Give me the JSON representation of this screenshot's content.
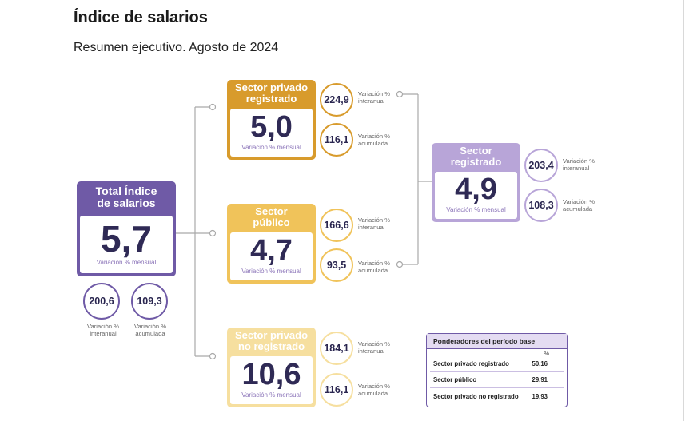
{
  "header": {
    "title": "Índice de salarios",
    "subtitle": "Resumen ejecutivo. Agosto de 2024"
  },
  "total": {
    "title_line1": "Total Índice",
    "title_line2": "de salarios",
    "value": "5,7",
    "caption": "Variación % mensual",
    "interanual": "200,6",
    "acumulada": "109,3",
    "interanual_label_1": "Variación %",
    "interanual_label_2": "interanual",
    "acumulada_label_1": "Variación %",
    "acumulada_label_2": "acumulada",
    "color": "#6f5aa6"
  },
  "privado_registrado": {
    "title_line1": "Sector privado",
    "title_line2": "registrado",
    "value": "5,0",
    "caption": "Variación % mensual",
    "interanual": "224,9",
    "acumulada": "116,1",
    "label_inter_1": "Variación %",
    "label_inter_2": "interanual",
    "label_acum_1": "Variación %",
    "label_acum_2": "acumulada",
    "color": "#d89b2c"
  },
  "publico": {
    "title_line1": "Sector",
    "title_line2": "público",
    "value": "4,7",
    "caption": "Variación % mensual",
    "interanual": "166,6",
    "acumulada": "93,5",
    "label_inter_1": "Variación %",
    "label_inter_2": "interanual",
    "label_acum_1": "Variación %",
    "label_acum_2": "acumulada",
    "color": "#f0c35a"
  },
  "privado_no_registrado": {
    "title_line1": "Sector privado",
    "title_line2": "no registrado",
    "value": "10,6",
    "caption": "Variación % mensual",
    "interanual": "184,1",
    "acumulada": "116,1",
    "label_inter_1": "Variación %",
    "label_inter_2": "interanual",
    "label_acum_1": "Variación %",
    "label_acum_2": "acumulada",
    "color": "#f6df9f"
  },
  "registrado": {
    "title_line1": "Sector",
    "title_line2": "registrado",
    "value": "4,9",
    "caption": "Variación % mensual",
    "interanual": "203,4",
    "acumulada": "108,3",
    "label_inter_1": "Variación %",
    "label_inter_2": "interanual",
    "label_acum_1": "Variación %",
    "label_acum_2": "acumulada",
    "color": "#b8a5d8"
  },
  "ponderadores": {
    "title": "Ponderadores del período base",
    "unit": "%",
    "rows": [
      {
        "label": "Sector privado registrado",
        "value": "50,16"
      },
      {
        "label": "Sector público",
        "value": "29,91"
      },
      {
        "label": "Sector privado no registrado",
        "value": "19,93"
      }
    ]
  }
}
